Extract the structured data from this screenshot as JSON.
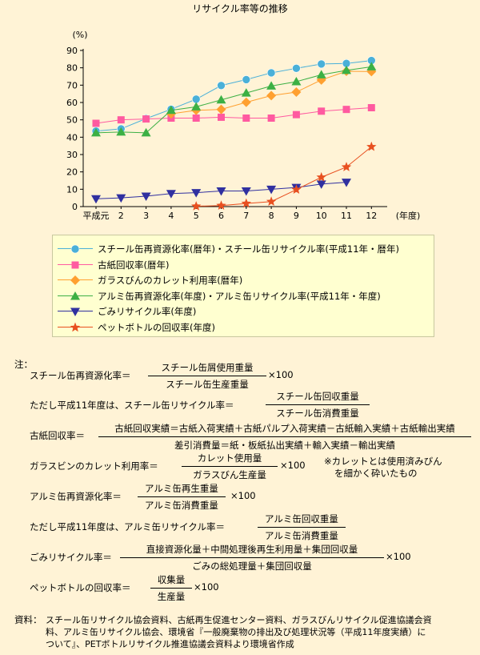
{
  "title": "リサイクル率等の推移",
  "chart_data": {
    "type": "line",
    "ylabel": "(%)",
    "xlabel": "(年度)",
    "ylim": [
      0,
      90
    ],
    "yticks": [
      0,
      10,
      20,
      30,
      40,
      50,
      60,
      70,
      80,
      90
    ],
    "categories": [
      "平成元",
      "2",
      "3",
      "4",
      "5",
      "6",
      "7",
      "8",
      "9",
      "10",
      "11",
      "12"
    ],
    "grid": false,
    "legend_position": "bottom",
    "series": [
      {
        "name": "スチール缶再資源化率(暦年)・スチール缶リサイクル率(平成11年・暦年)",
        "color": "#4ab0d8",
        "marker": "circle",
        "values": [
          43.5,
          44.8,
          50.7,
          56.1,
          61.9,
          69.8,
          73.2,
          77.1,
          79.7,
          82.2,
          82.5,
          84.2
        ]
      },
      {
        "name": "古紙回収率(暦年)",
        "color": "#ff5aa0",
        "marker": "square",
        "values": [
          48,
          50,
          50.5,
          51,
          51,
          51.5,
          51,
          51,
          53,
          55,
          56,
          57
        ]
      },
      {
        "name": "ガラスびんのカレット利用率(暦年)",
        "color": "#ffa030",
        "marker": "diamond",
        "values": [
          null,
          null,
          null,
          53.5,
          55.5,
          56,
          60.1,
          64,
          66,
          73,
          78,
          77.8
        ]
      },
      {
        "name": "アルミ缶再資源化率(年度)・アルミ缶リサイクル率(平成11年・年度)",
        "color": "#3cb044",
        "marker": "triangle-up",
        "values": [
          42.5,
          43,
          42.5,
          55.5,
          57.5,
          61.5,
          65.5,
          69.5,
          72,
          76,
          78.5,
          80.6
        ]
      },
      {
        "name": "ごみリサイクル率(年度)",
        "color": "#3030a0",
        "marker": "triangle-down",
        "values": [
          4.5,
          5,
          6,
          7.5,
          8,
          9,
          9,
          10,
          11,
          13,
          14,
          null
        ]
      },
      {
        "name": "ペットボトルの回収率(年度)",
        "color": "#e85020",
        "marker": "star",
        "values": [
          null,
          null,
          null,
          null,
          0.2,
          0.6,
          1.8,
          2.9,
          9.8,
          16.9,
          22.8,
          34.5
        ]
      }
    ]
  },
  "notes": {
    "heading": "注：",
    "steel_label": "スチール缶再資源化率＝",
    "steel_num": "スチール缶屑使用重量",
    "steel_den": "スチール缶生産重量",
    "x100": "×100",
    "steel11_label": "ただし平成11年度は、スチール缶リサイクル率＝",
    "steel11_num": "スチール缶回収重量",
    "steel11_den": "スチール缶消費重量",
    "paper_label": "古紙回収率＝",
    "paper_num": "古紙回収実績＝古紙入荷実績＋古紙パルプ入荷実績－古紙輸入実績＋古紙輸出実績",
    "paper_den": "差引消費量＝紙・板紙払出実績＋輸入実績－輸出実績",
    "glass_label": "ガラスビンのカレット利用率＝",
    "glass_num": "カレット使用量",
    "glass_den": "ガラスびん生産量",
    "cullet_note1": "※カレットとは使用済みびん",
    "cullet_note2": "を細かく砕いたもの",
    "alu_label": "アルミ缶再資源化率＝",
    "alu_num": "アルミ缶再生重量",
    "alu_den": "アルミ缶消費重量",
    "alu11_label": "ただし平成11年度は、アルミ缶リサイクル率＝",
    "alu11_num": "アルミ缶回収重量",
    "alu11_den": "アルミ缶消費重量",
    "waste_label": "ごみリサイクル率＝",
    "waste_num": "直接資源化量＋中間処理後再生利用量＋集団回収量",
    "waste_den": "ごみの総処理量＋集団回収量",
    "pet_label": "ペットボトルの回収率＝",
    "pet_num": "収集量",
    "pet_den": "生産量",
    "source_label": "資料：",
    "source_1": "スチール缶リサイクル協会資料、古紙再生促進センター資料、ガラスびんリサイクル促進協議会資",
    "source_2": "料、アルミ缶リサイクル協会、環境省『一般廃棄物の排出及び処理状況等（平成11年度実績）に",
    "source_3": "ついて』、PETボトルリサイクル推進協議会資料より環境省作成"
  }
}
